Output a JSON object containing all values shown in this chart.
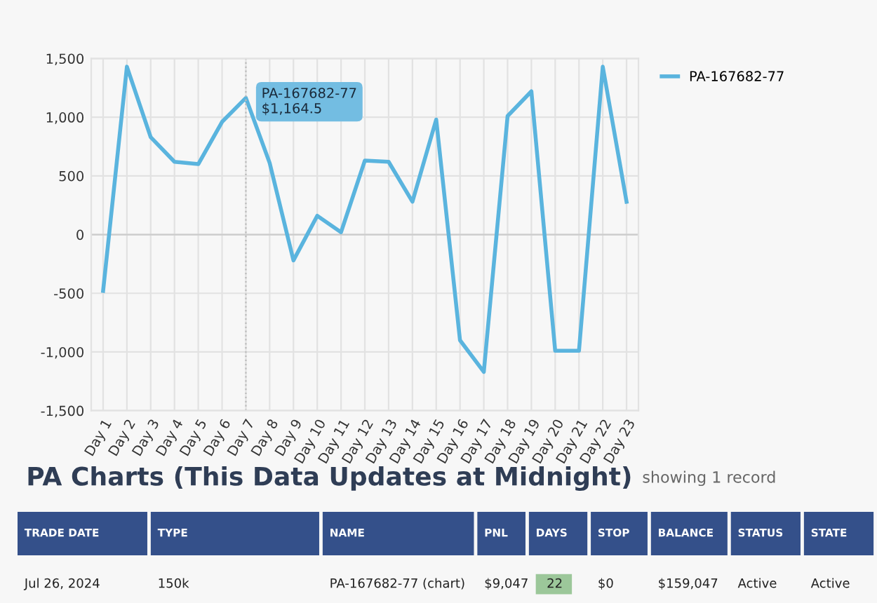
{
  "chart_data": [
    {
      "type": "line",
      "categories": [
        "Day 1",
        "Day 2",
        "Day 3",
        "Day 4",
        "Day 5",
        "Day 6",
        "Day 7",
        "Day 8",
        "Day 9",
        "Day 10",
        "Day 11",
        "Day 12",
        "Day 13",
        "Day 14",
        "Day 15",
        "Day 16",
        "Day 17",
        "Day 18",
        "Day 19",
        "Day 20",
        "Day 21",
        "Day 22",
        "Day 23"
      ],
      "series": [
        {
          "name": "PA-167682-77",
          "color": "#5ab4de",
          "values": [
            -480,
            1430,
            830,
            620,
            600,
            960,
            1164.5,
            610,
            -220,
            160,
            20,
            630,
            620,
            280,
            980,
            -900,
            -1170,
            1010,
            1220,
            -990,
            -990,
            1430,
            280
          ]
        }
      ],
      "ylim": [
        -1500,
        1500
      ],
      "yticks": [
        {
          "value": -1500,
          "label": "-1,500"
        },
        {
          "value": -1000,
          "label": "-1,000"
        },
        {
          "value": -500,
          "label": "-500"
        },
        0,
        500,
        {
          "value": 1000,
          "label": "1,000"
        },
        {
          "value": 1500,
          "label": "1,500"
        }
      ],
      "annotations": [
        {
          "text": "PA-167682-77\n$1,164.5",
          "x": "Day 7",
          "y": 1164.5
        }
      ],
      "ref_lines": [
        {
          "axis": "x",
          "value": "Day 7",
          "color": "#bbbbbb",
          "line_style": "dotted"
        }
      ],
      "grid": true,
      "legend": "top right",
      "marker": "none",
      "line_style": "solid"
    },
    {
      "type": "other",
      "title": "PA Charts (This Data Updates at Midnight)",
      "subtitle": "showing 1 record",
      "annotations": [
        "TRADE DATE",
        "TYPE",
        "NAME",
        "PNL",
        "DAYS",
        "STOP",
        "BALANCE",
        "STATUS",
        "STATE",
        "Jul 26, 2024",
        "150k",
        "PA-167682-77 (chart)",
        "$9,047",
        "22",
        "$0",
        "$159,047",
        "Active",
        "Active"
      ]
    }
  ]
}
